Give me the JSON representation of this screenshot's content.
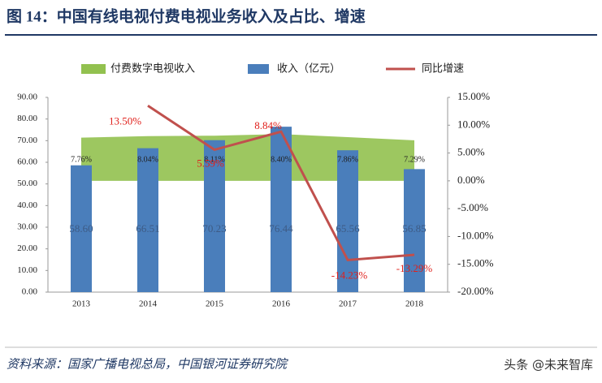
{
  "chart_data": {
    "type": "bar",
    "title": "图 14：中国有线电视付费电视业务收入及占比、增速",
    "categories": [
      "2013",
      "2014",
      "2015",
      "2016",
      "2017",
      "2018"
    ],
    "series": [
      {
        "name": "付费数字电视收入",
        "type": "area",
        "axis": "y2",
        "color": "#92c14f",
        "values": [
          7.76,
          8.04,
          8.11,
          8.4,
          7.86,
          7.29
        ],
        "value_labels": [
          "7.76%",
          "8.04%",
          "8.11%",
          "8.40%",
          "7.86%",
          "7.29%"
        ]
      },
      {
        "name": "收入（亿元）",
        "type": "bar",
        "color": "#4a7ebb",
        "values": [
          58.6,
          66.51,
          70.23,
          76.44,
          65.56,
          56.85
        ],
        "value_labels": [
          "58.60",
          "66.51",
          "70.23",
          "76.44",
          "65.56",
          "56.85"
        ]
      },
      {
        "name": "同比增速",
        "type": "line",
        "axis": "y2",
        "color": "#c0504d",
        "values": [
          null,
          13.5,
          5.59,
          8.84,
          -14.23,
          -13.29
        ],
        "value_labels": [
          null,
          "13.50%",
          "5.59%",
          "8.84%",
          "-14.23%",
          "-13.29%"
        ]
      }
    ],
    "ylim": [
      0,
      90
    ],
    "yticks": [
      {
        "value": 0,
        "label": "0.00"
      },
      {
        "value": 10,
        "label": "10.00"
      },
      {
        "value": 20,
        "label": "20.00"
      },
      {
        "value": 30,
        "label": "30.00"
      },
      {
        "value": 40,
        "label": "40.00"
      },
      {
        "value": 50,
        "label": "50.00"
      },
      {
        "value": 60,
        "label": "60.00"
      },
      {
        "value": 70,
        "label": "70.00"
      },
      {
        "value": 80,
        "label": "80.00"
      },
      {
        "value": 90,
        "label": "90.00"
      }
    ],
    "y2lim": [
      -20,
      15
    ],
    "y2ticks": [
      {
        "value": -20,
        "label": "-20.00%"
      },
      {
        "value": -15,
        "label": "-15.00%"
      },
      {
        "value": -10,
        "label": "-10.00%"
      },
      {
        "value": -5,
        "label": "-5.00%"
      },
      {
        "value": 0,
        "label": "0.00%"
      },
      {
        "value": 5,
        "label": "5.00%"
      },
      {
        "value": 10,
        "label": "10.00%"
      },
      {
        "value": 15,
        "label": "15.00%"
      }
    ],
    "grid": false,
    "legend": "top",
    "source": "资料来源：国家广播电视总局，中国银河证券研究院",
    "watermark": "头条 @未来智库"
  }
}
